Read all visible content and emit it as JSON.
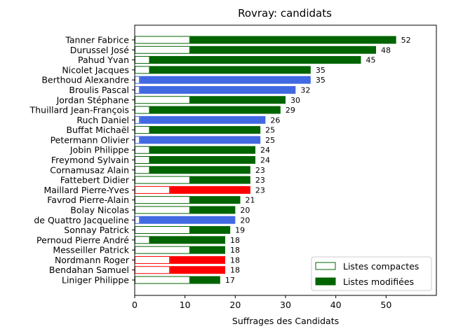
{
  "chart_data": {
    "type": "bar",
    "orientation": "horizontal",
    "stacked": true,
    "title": "Rovray: candidats",
    "xlabel": "Suffrages des Candidats",
    "ylabel": "",
    "xlim": [
      0,
      60
    ],
    "xticks": [
      0,
      10,
      20,
      30,
      40,
      50
    ],
    "grid": false,
    "legend_position": "lower-right",
    "legend": [
      {
        "name": "Listes compactes",
        "style": "outline"
      },
      {
        "name": "Listes modifiées",
        "style": "filled"
      }
    ],
    "colors": {
      "green": "#006400",
      "blue": "#4169e1",
      "red": "#ff0000"
    },
    "candidates": [
      {
        "name": "Tanner Fabrice",
        "compact": 11,
        "total": 52,
        "color": "green"
      },
      {
        "name": "Durussel José",
        "compact": 11,
        "total": 48,
        "color": "green"
      },
      {
        "name": "Pahud Yvan",
        "compact": 3,
        "total": 45,
        "color": "green"
      },
      {
        "name": "Nicolet Jacques",
        "compact": 3,
        "total": 35,
        "color": "green"
      },
      {
        "name": "Berthoud Alexandre",
        "compact": 1,
        "total": 35,
        "color": "blue"
      },
      {
        "name": "Broulis Pascal",
        "compact": 1,
        "total": 32,
        "color": "blue"
      },
      {
        "name": "Jordan Stéphane",
        "compact": 11,
        "total": 30,
        "color": "green"
      },
      {
        "name": "Thuillard Jean-François",
        "compact": 3,
        "total": 29,
        "color": "green"
      },
      {
        "name": "Ruch Daniel",
        "compact": 1,
        "total": 26,
        "color": "blue"
      },
      {
        "name": "Buffat Michaël",
        "compact": 3,
        "total": 25,
        "color": "green"
      },
      {
        "name": "Petermann Olivier",
        "compact": 1,
        "total": 25,
        "color": "blue"
      },
      {
        "name": "Jobin Philippe",
        "compact": 3,
        "total": 24,
        "color": "green"
      },
      {
        "name": "Freymond Sylvain",
        "compact": 3,
        "total": 24,
        "color": "green"
      },
      {
        "name": "Cornamusaz Alain",
        "compact": 3,
        "total": 23,
        "color": "green"
      },
      {
        "name": "Fattebert Didier",
        "compact": 11,
        "total": 23,
        "color": "green"
      },
      {
        "name": "Maillard Pierre-Yves",
        "compact": 7,
        "total": 23,
        "color": "red"
      },
      {
        "name": "Favrod Pierre-Alain",
        "compact": 11,
        "total": 21,
        "color": "green"
      },
      {
        "name": "Bolay Nicolas",
        "compact": 11,
        "total": 20,
        "color": "green"
      },
      {
        "name": "de Quattro Jacqueline",
        "compact": 1,
        "total": 20,
        "color": "blue"
      },
      {
        "name": "Sonnay Patrick",
        "compact": 11,
        "total": 19,
        "color": "green"
      },
      {
        "name": "Pernoud Pierre André",
        "compact": 3,
        "total": 18,
        "color": "green"
      },
      {
        "name": "Messeiller Patrick",
        "compact": 11,
        "total": 18,
        "color": "green"
      },
      {
        "name": "Nordmann Roger",
        "compact": 7,
        "total": 18,
        "color": "red"
      },
      {
        "name": "Bendahan Samuel",
        "compact": 7,
        "total": 18,
        "color": "red"
      },
      {
        "name": "Liniger Philippe",
        "compact": 11,
        "total": 17,
        "color": "green"
      }
    ]
  }
}
